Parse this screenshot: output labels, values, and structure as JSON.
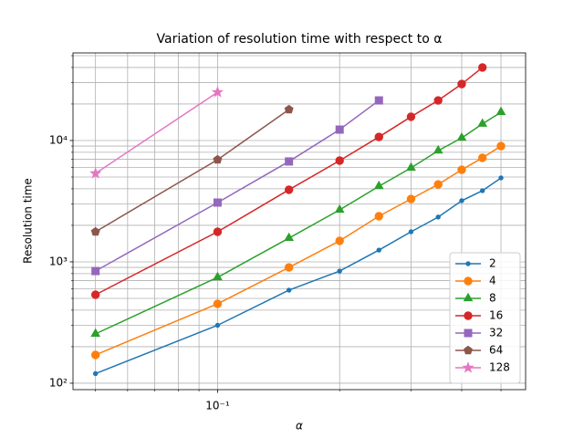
{
  "chart_data": {
    "type": "line",
    "title": "Variation of resolution time with respect to α",
    "xlabel": "α",
    "ylabel": "Resolution time",
    "xscale": "log",
    "yscale": "log",
    "grid": true,
    "legend": "lower right",
    "xlim": [
      0.044,
      0.575
    ],
    "ylim": [
      88.5,
      52700
    ],
    "xticks": [
      {
        "value": 0.1,
        "label": "10⁻¹"
      }
    ],
    "xminorticks": [
      0.05,
      0.06,
      0.07,
      0.08,
      0.09,
      0.2,
      0.3,
      0.4,
      0.5
    ],
    "yticks": [
      {
        "value": 100,
        "label": "10²"
      },
      {
        "value": 1000,
        "label": "10³"
      },
      {
        "value": 10000,
        "label": "10⁴"
      }
    ],
    "yminorticks": [
      200,
      300,
      400,
      500,
      600,
      700,
      800,
      900,
      2000,
      3000,
      4000,
      5000,
      6000,
      7000,
      8000,
      9000,
      20000,
      30000,
      40000,
      50000
    ],
    "series": [
      {
        "name": "2",
        "color": "#1f77b4",
        "marker": "point",
        "x": [
          0.05,
          0.1,
          0.15,
          0.2,
          0.25,
          0.3,
          0.35,
          0.4,
          0.45,
          0.5
        ],
        "values": [
          120,
          300,
          585,
          840,
          1250,
          1770,
          2340,
          3190,
          3860,
          4920
        ]
      },
      {
        "name": "4",
        "color": "#ff7f0e",
        "marker": "circle",
        "x": [
          0.05,
          0.1,
          0.15,
          0.2,
          0.25,
          0.3,
          0.35,
          0.4,
          0.45,
          0.5
        ],
        "values": [
          171,
          451,
          900,
          1490,
          2380,
          3300,
          4350,
          5740,
          7200,
          9000
        ]
      },
      {
        "name": "8",
        "color": "#2ca02c",
        "marker": "triangle",
        "x": [
          0.05,
          0.1,
          0.15,
          0.2,
          0.25,
          0.3,
          0.35,
          0.4,
          0.45,
          0.5
        ],
        "values": [
          255,
          745,
          1570,
          2680,
          4200,
          5950,
          8250,
          10500,
          13700,
          17100
        ]
      },
      {
        "name": "16",
        "color": "#d62728",
        "marker": "circle",
        "x": [
          0.05,
          0.1,
          0.15,
          0.2,
          0.25,
          0.3,
          0.35,
          0.4,
          0.45
        ],
        "values": [
          536,
          1770,
          3930,
          6830,
          10700,
          15700,
          21400,
          29200,
          40000
        ]
      },
      {
        "name": "32",
        "color": "#9467bd",
        "marker": "square",
        "x": [
          0.05,
          0.1,
          0.15,
          0.2,
          0.25
        ],
        "values": [
          840,
          3080,
          6720,
          12300,
          21400
        ]
      },
      {
        "name": "64",
        "color": "#8c564b",
        "marker": "pentagon",
        "x": [
          0.05,
          0.1,
          0.15
        ],
        "values": [
          1770,
          6950,
          18000
        ]
      },
      {
        "name": "128",
        "color": "#e377c2",
        "marker": "star",
        "x": [
          0.05,
          0.1
        ],
        "values": [
          5360,
          25000
        ]
      }
    ]
  }
}
